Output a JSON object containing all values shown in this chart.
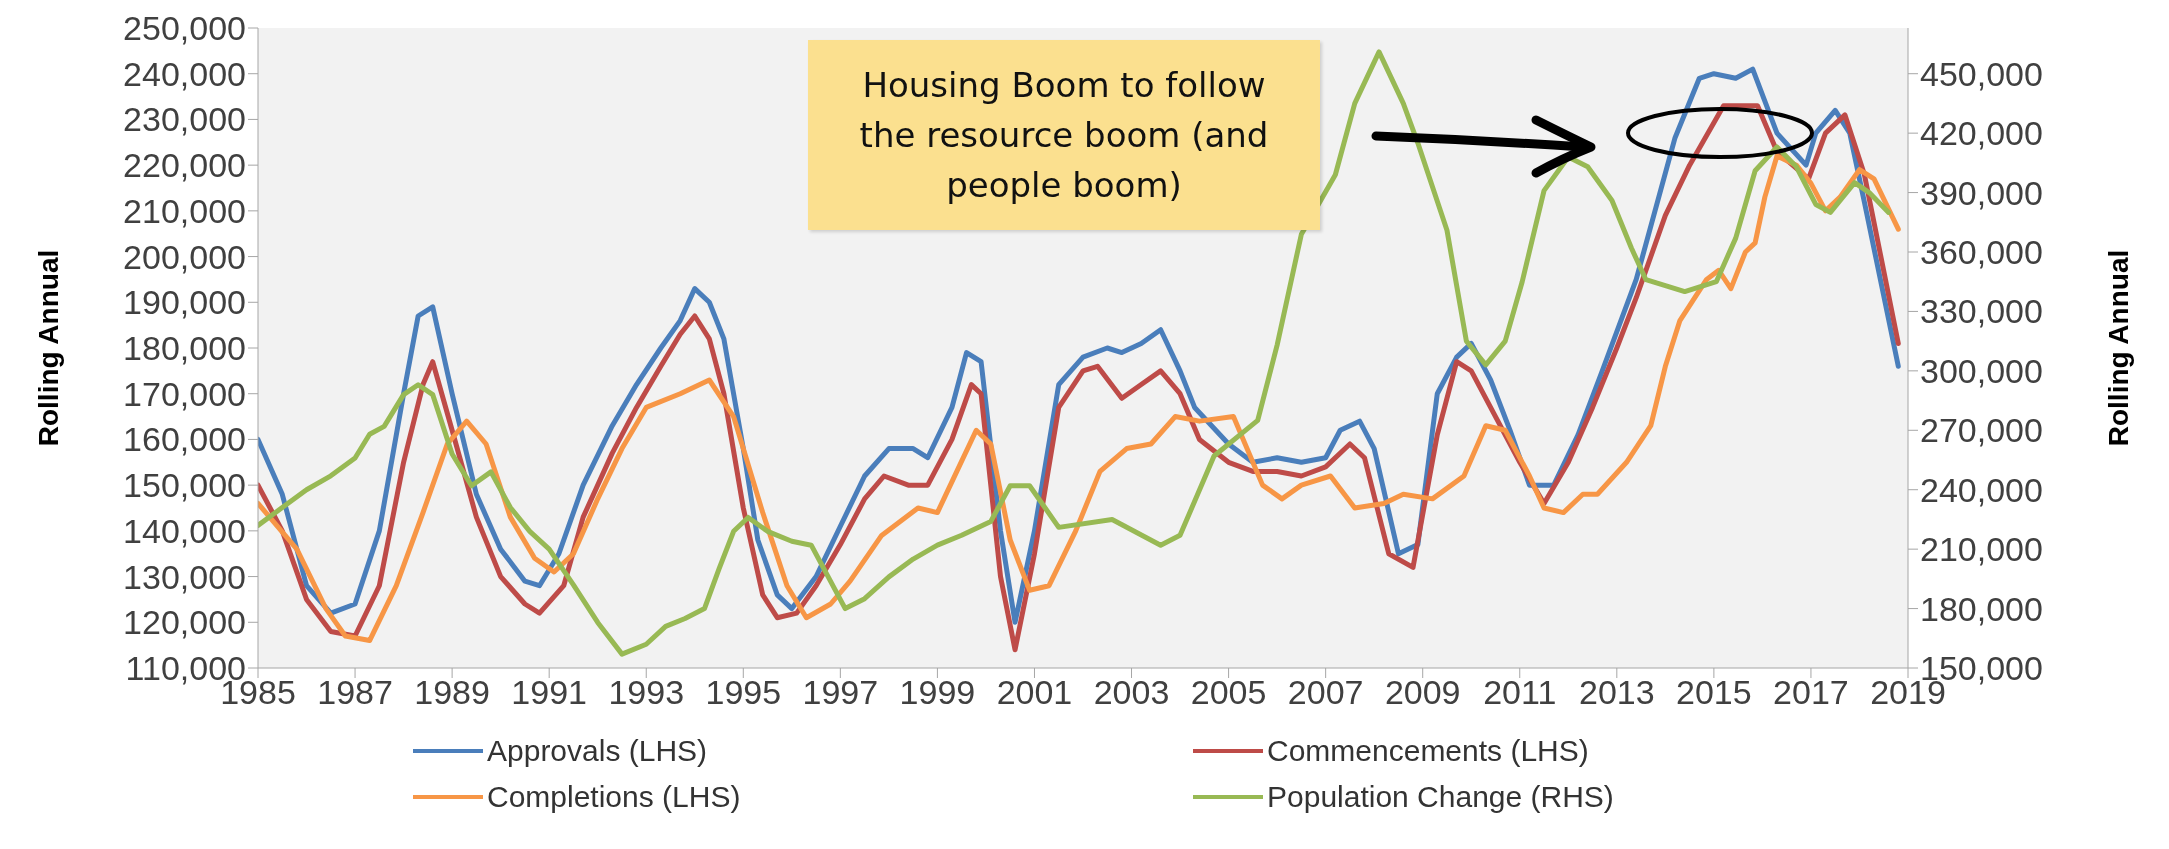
{
  "chart_data": {
    "type": "line",
    "ylabel": "Rolling Annual",
    "y2label": "Rolling Annual",
    "annotations": [
      "Housing Boom to follow the resource boom (and people boom)"
    ],
    "xlim": [
      1985,
      2019
    ],
    "xticks": [
      1985,
      1987,
      1989,
      1991,
      1993,
      1995,
      1997,
      1999,
      2001,
      2003,
      2005,
      2007,
      2009,
      2011,
      2013,
      2015,
      2017,
      2019
    ],
    "ylim": [
      110000,
      250000
    ],
    "yticks": [
      {
        "value": 110000,
        "label": "110,000"
      },
      {
        "value": 120000,
        "label": "120,000"
      },
      {
        "value": 130000,
        "label": "130,000"
      },
      {
        "value": 140000,
        "label": "140,000"
      },
      {
        "value": 150000,
        "label": "150,000"
      },
      {
        "value": 160000,
        "label": "160,000"
      },
      {
        "value": 170000,
        "label": "170,000"
      },
      {
        "value": 180000,
        "label": "180,000"
      },
      {
        "value": 190000,
        "label": "190,000"
      },
      {
        "value": 200000,
        "label": "200,000"
      },
      {
        "value": 210000,
        "label": "210,000"
      },
      {
        "value": 220000,
        "label": "220,000"
      },
      {
        "value": 230000,
        "label": "230,000"
      },
      {
        "value": 240000,
        "label": "240,000"
      },
      {
        "value": 250000,
        "label": "250,000"
      }
    ],
    "y2lim": [
      150000,
      473077
    ],
    "y2ticks": [
      {
        "value": 150000,
        "label": "150,000"
      },
      {
        "value": 180000,
        "label": "180,000"
      },
      {
        "value": 210000,
        "label": "210,000"
      },
      {
        "value": 240000,
        "label": "240,000"
      },
      {
        "value": 270000,
        "label": "270,000"
      },
      {
        "value": 300000,
        "label": "300,000"
      },
      {
        "value": 330000,
        "label": "330,000"
      },
      {
        "value": 360000,
        "label": "360,000"
      },
      {
        "value": 390000,
        "label": "390,000"
      },
      {
        "value": 420000,
        "label": "420,000"
      },
      {
        "value": 450000,
        "label": "450,000"
      }
    ],
    "legend": "bottom",
    "marker": "none",
    "line_style": "solid",
    "series": [
      {
        "name": "Approvals (LHS)",
        "color": "#4a7ebb",
        "x": [
          1985,
          1985.5,
          1986,
          1986.5,
          1987,
          1987.5,
          1988,
          1988.3,
          1988.6,
          1989,
          1989.5,
          1990,
          1990.5,
          1990.8,
          1991.2,
          1991.7,
          1992.3,
          1992.8,
          1993.3,
          1993.7,
          1994,
          1994.3,
          1994.6,
          1995,
          1995.3,
          1995.7,
          1996,
          1996.5,
          1997,
          1997.5,
          1998,
          1998.5,
          1998.8,
          1999.3,
          1999.6,
          1999.9,
          2000.3,
          2000.6,
          2001,
          2001.5,
          2002,
          2002.5,
          2002.8,
          2003.2,
          2003.6,
          2004,
          2004.3,
          2005,
          2005.5,
          2006,
          2006.5,
          2007,
          2007.3,
          2007.7,
          2008,
          2008.5,
          2008.9,
          2009.3,
          2009.7,
          2010,
          2010.4,
          2010.8,
          2011.2,
          2011.7,
          2012.2,
          2012.7,
          2013.4,
          2014.2,
          2014.7,
          2015,
          2015.45,
          2015.8,
          2016.3,
          2016.9,
          2017.1,
          2017.5,
          2017.8,
          2018.1,
          2018.8
        ],
        "values": [
          160000,
          148000,
          128000,
          122000,
          124000,
          140000,
          170000,
          187000,
          189000,
          170000,
          148000,
          136000,
          129000,
          128000,
          135000,
          150000,
          163000,
          172000,
          180000,
          186000,
          193000,
          190000,
          182000,
          158000,
          138000,
          126000,
          123000,
          130000,
          141000,
          152000,
          158000,
          158000,
          156000,
          167000,
          179000,
          177000,
          140000,
          120000,
          140000,
          172000,
          178000,
          180000,
          179000,
          181000,
          184000,
          175000,
          167000,
          159000,
          155000,
          156000,
          155000,
          156000,
          162000,
          164000,
          158000,
          135000,
          137000,
          170000,
          178000,
          181000,
          173000,
          162000,
          150000,
          150000,
          161000,
          175000,
          195000,
          226000,
          239000,
          240000,
          239000,
          241000,
          227000,
          220000,
          227000,
          232000,
          227000,
          212000,
          176000
        ]
      },
      {
        "name": "Commencements (LHS)",
        "color": "#be4b48",
        "x": [
          1985,
          1985.5,
          1986,
          1986.5,
          1987,
          1987.5,
          1988,
          1988.4,
          1988.6,
          1989,
          1989.5,
          1990,
          1990.5,
          1990.8,
          1991.3,
          1991.7,
          1992.3,
          1992.8,
          1993.3,
          1993.7,
          1994,
          1994.3,
          1994.6,
          1995,
          1995.4,
          1995.7,
          1996.1,
          1996.5,
          1997,
          1997.5,
          1997.9,
          1998.4,
          1998.8,
          1999.3,
          1999.7,
          1999.9,
          2000.3,
          2000.6,
          2001,
          2001.5,
          2002,
          2002.3,
          2002.8,
          2003.2,
          2003.6,
          2004,
          2004.4,
          2005,
          2005.5,
          2006,
          2006.5,
          2007,
          2007.5,
          2007.8,
          2008.3,
          2008.8,
          2009.3,
          2009.7,
          2010,
          2010.5,
          2011,
          2011.5,
          2012,
          2012.5,
          2013,
          2013.4,
          2014,
          2014.5,
          2015.2,
          2015.9,
          2016.3,
          2016.95,
          2017.3,
          2017.7,
          2018.1,
          2018.8
        ],
        "values": [
          150000,
          140000,
          125000,
          118000,
          117000,
          128000,
          155000,
          172000,
          177000,
          162000,
          143000,
          130000,
          124000,
          122000,
          128000,
          143000,
          157000,
          167000,
          176000,
          183000,
          187000,
          182000,
          170000,
          145000,
          126000,
          121000,
          122000,
          128000,
          137000,
          147000,
          152000,
          150000,
          150000,
          160000,
          172000,
          170000,
          130000,
          114000,
          135000,
          167000,
          175000,
          176000,
          169000,
          172000,
          175000,
          170000,
          160000,
          155000,
          153000,
          153000,
          152000,
          154000,
          159000,
          156000,
          135000,
          132000,
          161000,
          177000,
          175000,
          165000,
          155000,
          146000,
          155000,
          167000,
          180000,
          191000,
          209000,
          220000,
          233000,
          233000,
          223000,
          217000,
          227000,
          231000,
          218000,
          181000
        ]
      },
      {
        "name": "Completions (LHS)",
        "color": "#f79646",
        "x": [
          1985,
          1985.8,
          1986.4,
          1986.8,
          1987.3,
          1987.85,
          1988.4,
          1988.9,
          1989.3,
          1989.7,
          1990.2,
          1990.7,
          1991.1,
          1991.5,
          1992,
          1992.5,
          1993,
          1993.7,
          1994.3,
          1994.8,
          1995.4,
          1995.9,
          1996.3,
          1996.8,
          1997.2,
          1997.85,
          1998.6,
          1999,
          1999.4,
          1999.8,
          2000.1,
          2000.5,
          2000.9,
          2001.3,
          2001.85,
          2002.35,
          2002.9,
          2003.4,
          2003.9,
          2004.4,
          2005.1,
          2005.7,
          2006.1,
          2006.5,
          2007.1,
          2007.6,
          2008.2,
          2008.6,
          2009.2,
          2009.85,
          2010.3,
          2010.7,
          2011.2,
          2011.5,
          2011.9,
          2012.3,
          2012.6,
          2013.2,
          2013.7,
          2014,
          2014.3,
          2014.85,
          2015.1,
          2015.35,
          2015.65,
          2015.85,
          2016.05,
          2016.3,
          2016.7,
          2017,
          2017.3,
          2017.6,
          2018,
          2018.3,
          2018.8
        ],
        "values": [
          146000,
          136000,
          123000,
          117000,
          116000,
          128000,
          144000,
          159000,
          164000,
          159000,
          143000,
          134000,
          131000,
          135000,
          147000,
          158000,
          167000,
          170000,
          173000,
          165000,
          144000,
          128000,
          121000,
          124000,
          129000,
          139000,
          145000,
          144000,
          153000,
          162000,
          159000,
          138000,
          127000,
          128000,
          140000,
          153000,
          158000,
          159000,
          165000,
          164000,
          165000,
          150000,
          147000,
          150000,
          152000,
          145000,
          146000,
          148000,
          147000,
          152000,
          163000,
          162000,
          152000,
          145000,
          144000,
          148000,
          148000,
          155000,
          163000,
          176000,
          186000,
          195000,
          197000,
          193000,
          201000,
          203000,
          213000,
          222000,
          220000,
          216000,
          210000,
          213000,
          219000,
          217000,
          206000
        ]
      },
      {
        "name": "Population Change (RHS)",
        "color": "#98b954",
        "axis": "y2",
        "x": [
          1985,
          1985.5,
          1986,
          1986.5,
          1987,
          1987.3,
          1987.6,
          1988,
          1988.3,
          1988.6,
          1989,
          1989.4,
          1989.8,
          1990.2,
          1990.6,
          1991,
          1991.5,
          1992,
          1992.5,
          1993,
          1993.4,
          1993.8,
          1994.2,
          1994.5,
          1994.8,
          1995.1,
          1995.5,
          1996,
          1996.4,
          1997.1,
          1997.5,
          1998,
          1998.5,
          1999,
          1999.5,
          2000.1,
          2000.5,
          2000.9,
          2001.5,
          2002.6,
          2003.6,
          2004,
          2004.7,
          2005.6,
          2006,
          2006.5,
          2007.2,
          2007.6,
          2008.1,
          2008.6,
          2008.9,
          2009.5,
          2009.9,
          2010.3,
          2010.7,
          2011.05,
          2011.5,
          2012,
          2012.4,
          2012.9,
          2013.3,
          2013.6,
          2014.4,
          2015.05,
          2015.45,
          2015.85,
          2016.3,
          2016.7,
          2017.1,
          2017.4,
          2017.9,
          2018.2,
          2018.6
        ],
        "values": [
          222000,
          231000,
          240000,
          247000,
          256000,
          268000,
          272000,
          288000,
          293000,
          288000,
          258000,
          242000,
          249000,
          231000,
          219000,
          210000,
          192000,
          173000,
          157000,
          162000,
          171000,
          175000,
          180000,
          200000,
          219000,
          226000,
          219000,
          214000,
          212000,
          180000,
          185000,
          196000,
          205000,
          212000,
          217000,
          224000,
          242000,
          242000,
          221000,
          225000,
          212000,
          217000,
          257000,
          275000,
          313000,
          369000,
          399000,
          435000,
          461000,
          435000,
          415000,
          371000,
          315000,
          303000,
          315000,
          345000,
          391000,
          408000,
          403000,
          386000,
          362000,
          346000,
          340000,
          345000,
          367000,
          401000,
          413000,
          403000,
          384000,
          380000,
          395000,
          390000,
          380000
        ]
      }
    ]
  }
}
